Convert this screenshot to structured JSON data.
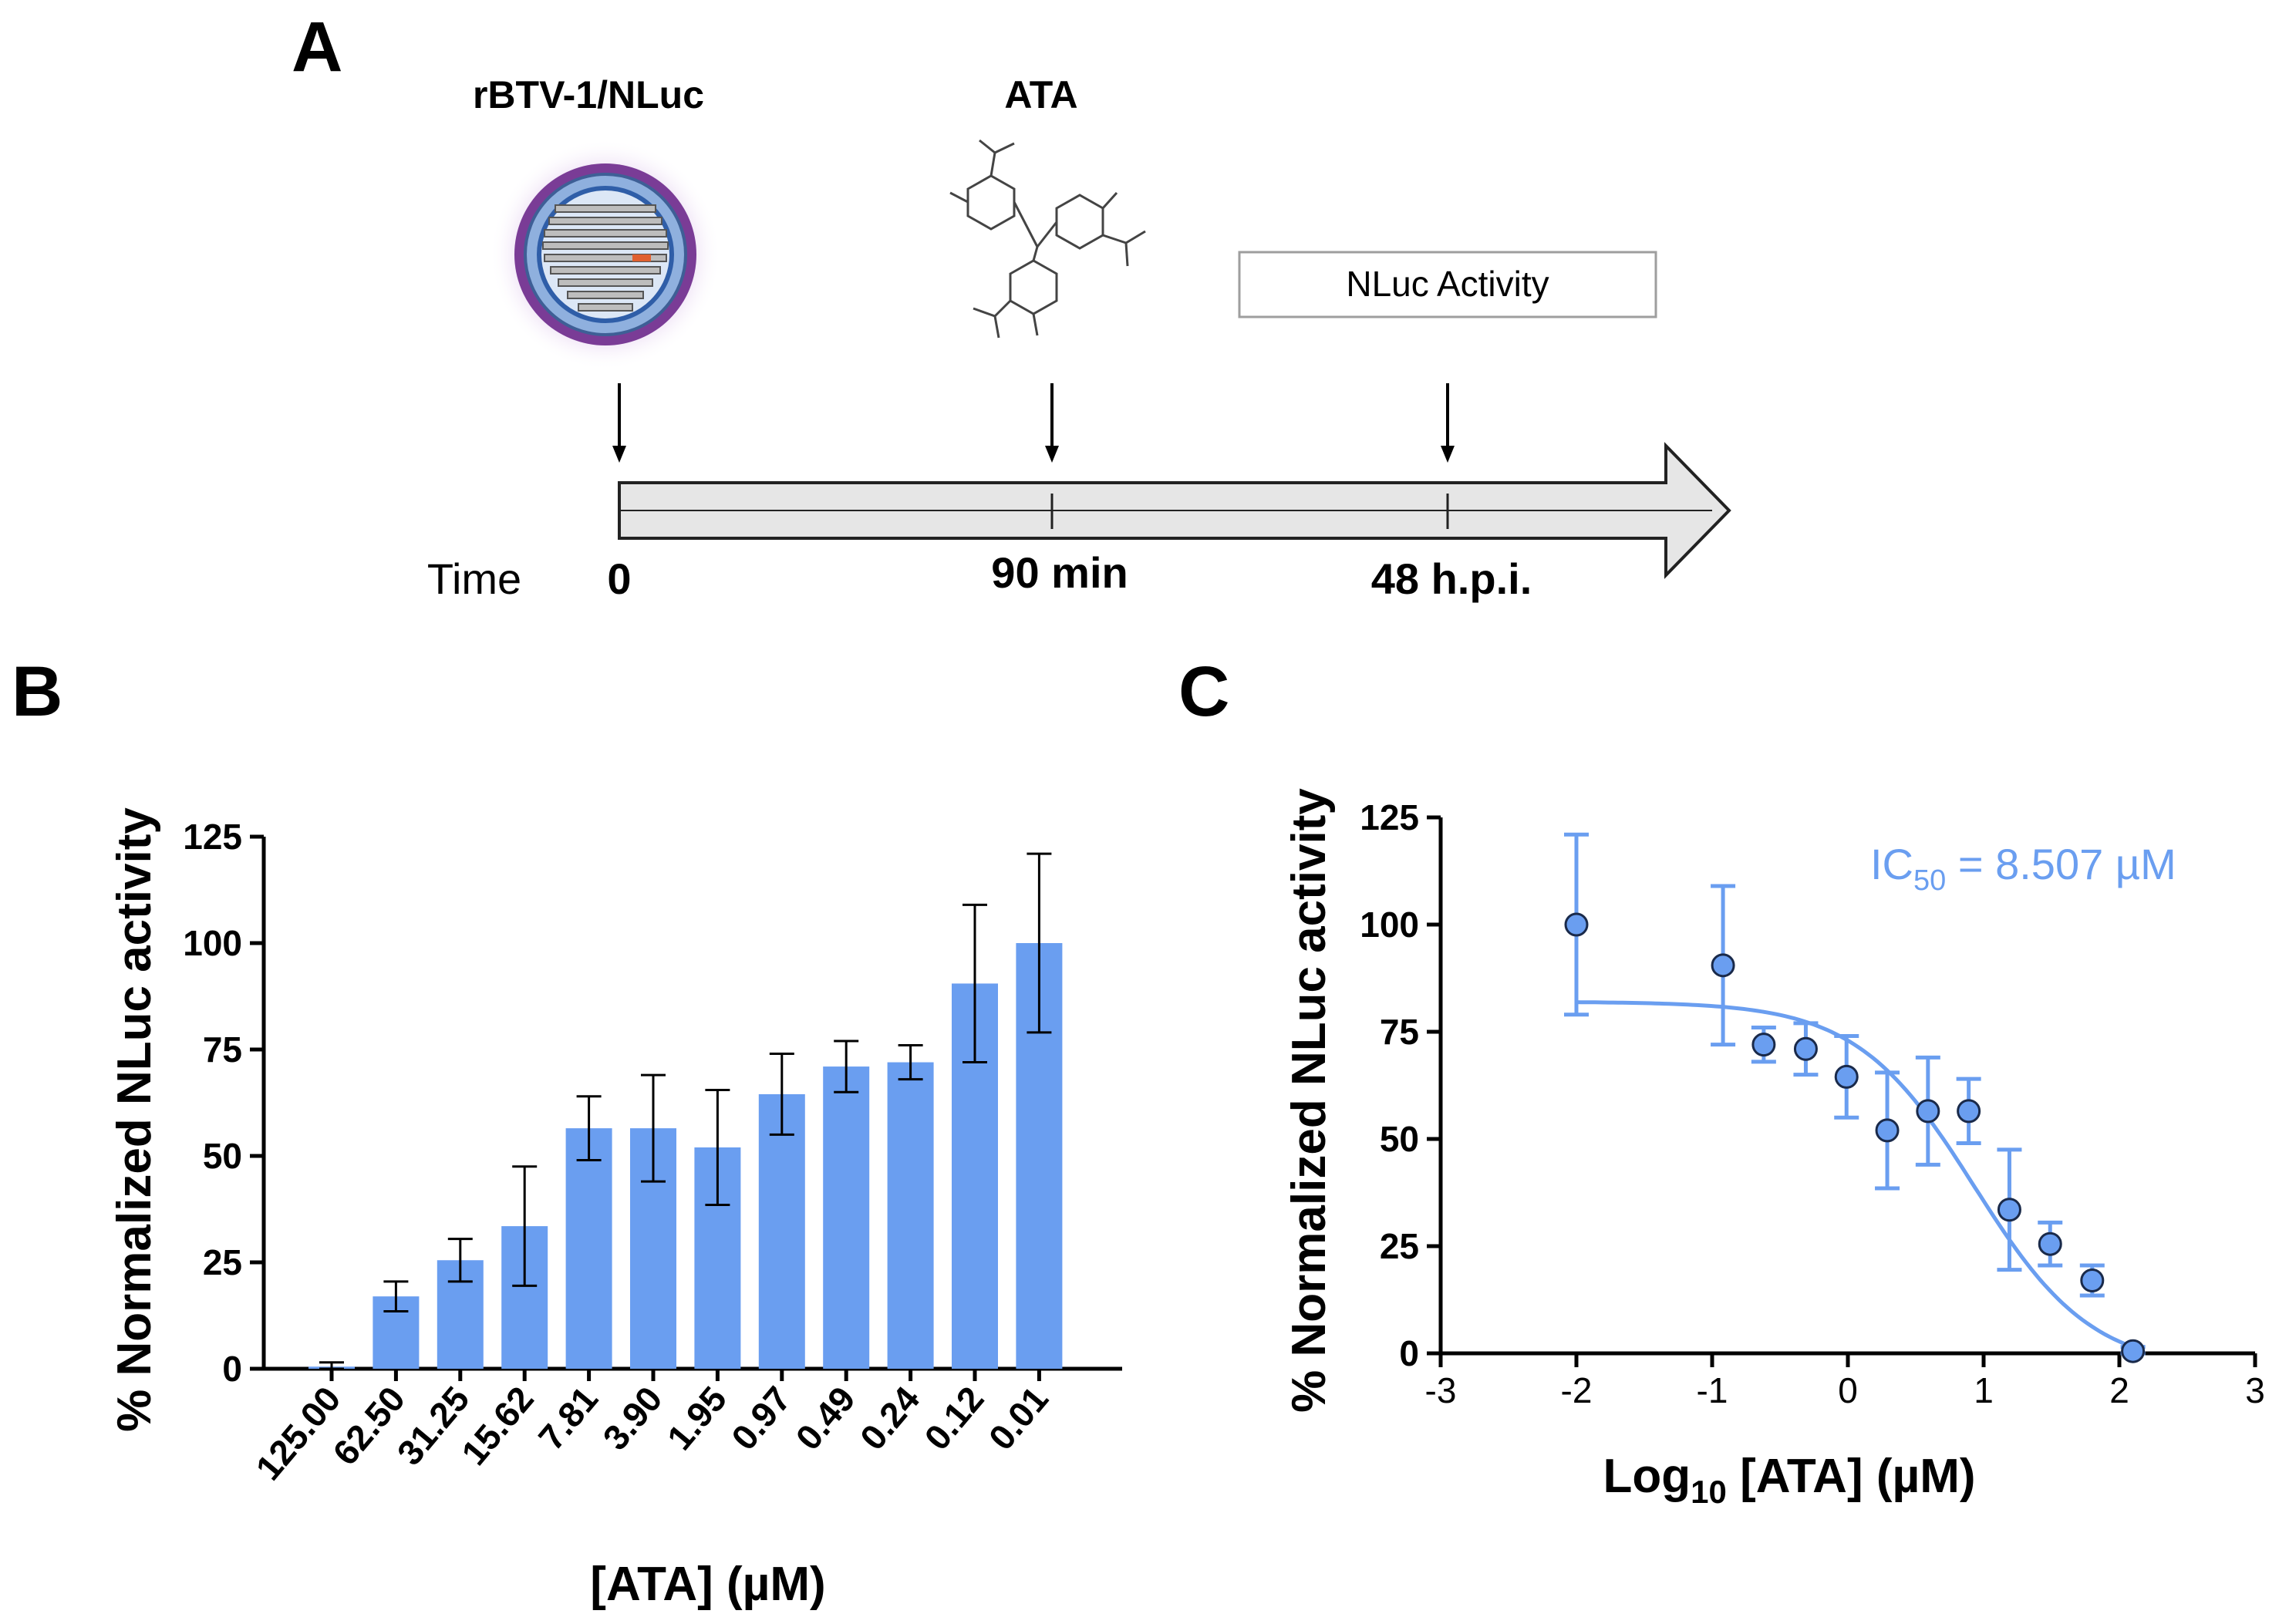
{
  "panel_a": {
    "label": "A",
    "virus_label": "rBTV-1/NLuc",
    "drug_label": "ATA",
    "readout_box": "NLuc Activity",
    "time_label": "Time",
    "timepoints": [
      "0",
      "90 min",
      "48 h.p.i."
    ],
    "icons": [
      "virus-particle-icon",
      "ata-structure-icon",
      "timeline-arrow-icon"
    ]
  },
  "panel_b": {
    "label": "B"
  },
  "panel_c": {
    "label": "C"
  },
  "colors": {
    "bar": "#6a9ef0",
    "marker": "#6a9ef0",
    "curve": "#6a9ef0",
    "error": "#000000",
    "axis": "#000000"
  },
  "chart_data": [
    {
      "type": "bar",
      "title": "",
      "xlabel": "[ATA] (µM)",
      "ylabel": "% Normalized NLuc activity",
      "categories": [
        "125.00",
        "62.50",
        "31.25",
        "15.62",
        "7.81",
        "3.90",
        "1.95",
        "0.97",
        "0.49",
        "0.24",
        "0.12",
        "0.01"
      ],
      "values": [
        0.5,
        17,
        25.5,
        33.5,
        56.5,
        56.5,
        52,
        64.5,
        71,
        72,
        90.5,
        100
      ],
      "errors": [
        1,
        3.5,
        5,
        14,
        7.5,
        12.5,
        13.5,
        9.5,
        6,
        4,
        18.5,
        21
      ],
      "yticks": [
        0,
        25,
        50,
        75,
        100,
        125
      ],
      "ylim": [
        0,
        125
      ],
      "grid": false
    },
    {
      "type": "scatter",
      "title": "",
      "xlabel": "Log10 [ATA] (µM)",
      "xlabel_main": "Log",
      "xlabel_sub": "10",
      "xlabel_rest": " [ATA] (µM)",
      "ylabel": "% Normalized NLuc activity",
      "annotation": "IC50 = 8.507 µM",
      "annotation_main": "IC",
      "annotation_sub": "50",
      "annotation_rest": " = 8.507 µM",
      "points": [
        {
          "x": -2.0,
          "y": 100,
          "err": 21
        },
        {
          "x": -0.92,
          "y": 90.5,
          "err": 18.5
        },
        {
          "x": -0.62,
          "y": 72,
          "err": 4
        },
        {
          "x": -0.31,
          "y": 71,
          "err": 6
        },
        {
          "x": -0.01,
          "y": 64.5,
          "err": 9.5
        },
        {
          "x": 0.29,
          "y": 52,
          "err": 13.5
        },
        {
          "x": 0.59,
          "y": 56.5,
          "err": 12.5
        },
        {
          "x": 0.89,
          "y": 56.5,
          "err": 7.5
        },
        {
          "x": 1.19,
          "y": 33.5,
          "err": 14
        },
        {
          "x": 1.49,
          "y": 25.5,
          "err": 5
        },
        {
          "x": 1.8,
          "y": 17,
          "err": 3.5
        },
        {
          "x": 2.1,
          "y": 0.5,
          "err": 1
        }
      ],
      "fit": {
        "model": "four-parameter logistic",
        "top": 82,
        "bottom": -4,
        "log_ic50": 0.93,
        "hill": -1.0,
        "x_range": [
          -2.0,
          2.1
        ]
      },
      "xticks": [
        -3,
        -2,
        -1,
        0,
        1,
        2,
        3
      ],
      "yticks": [
        0,
        25,
        50,
        75,
        100,
        125
      ],
      "xlim": [
        -3,
        3
      ],
      "ylim": [
        0,
        125
      ],
      "grid": false
    }
  ]
}
